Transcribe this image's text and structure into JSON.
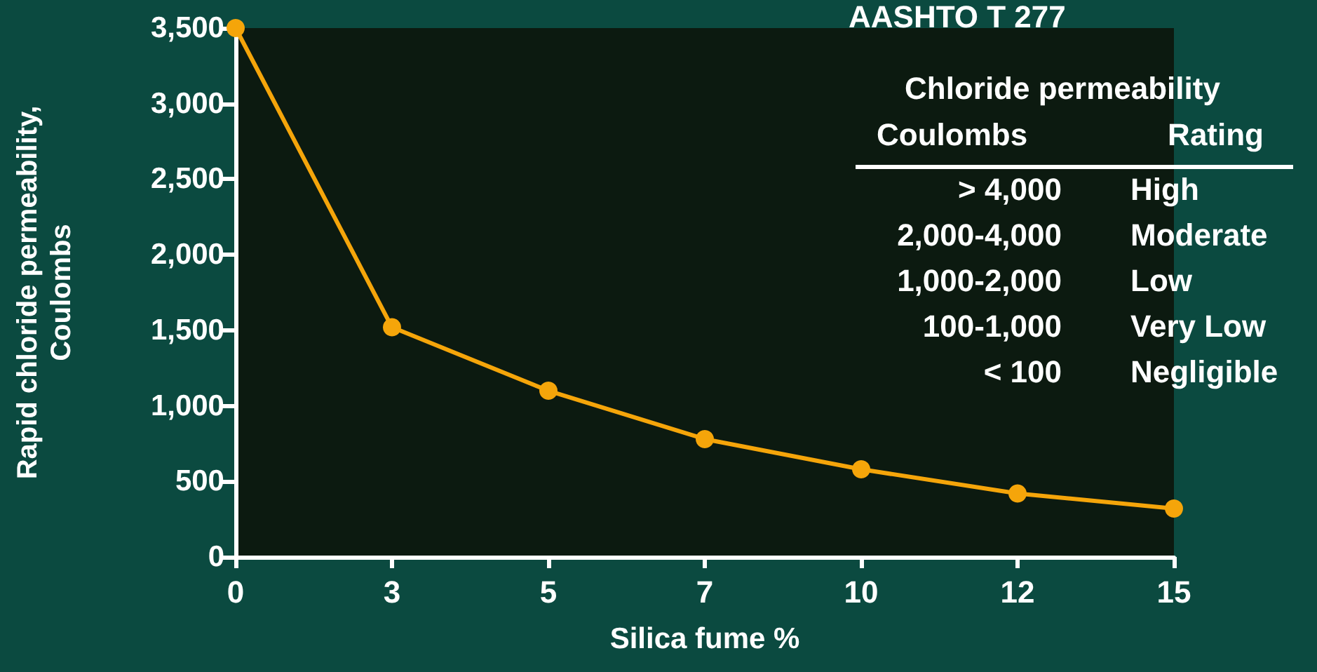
{
  "chart_data": {
    "type": "line",
    "title": "AASHTO T 277",
    "xlabel": "Silica fume %",
    "ylabel": "Rapid chloride permeability,\nCoulombs",
    "categories": [
      "0",
      "3",
      "5",
      "7",
      "10",
      "12",
      "15"
    ],
    "series": [
      {
        "color": "#f5a50a",
        "values": [
          3500,
          1520,
          1100,
          780,
          580,
          420,
          320
        ]
      }
    ],
    "ylim": [
      0,
      3500
    ],
    "yticks": [
      0,
      500,
      {
        "value": 1000,
        "label": "1,000"
      },
      {
        "value": 1500,
        "label": "1,500"
      },
      {
        "value": 2000,
        "label": "2,000"
      },
      {
        "value": 2500,
        "label": "2,500"
      },
      {
        "value": 3000,
        "label": "3,000"
      },
      {
        "value": 3500,
        "label": "3,500"
      }
    ],
    "grid": false,
    "marker": "circle",
    "line_style": "solid",
    "annotations": [
      "Chloride permeability",
      "Coulombs",
      "Rating",
      "> 4,000",
      "High",
      "2,000-4,000",
      "Moderate",
      "1,000-2,000",
      "Low",
      "100-1,000",
      "Very Low",
      "< 100",
      "Negligible"
    ]
  }
}
